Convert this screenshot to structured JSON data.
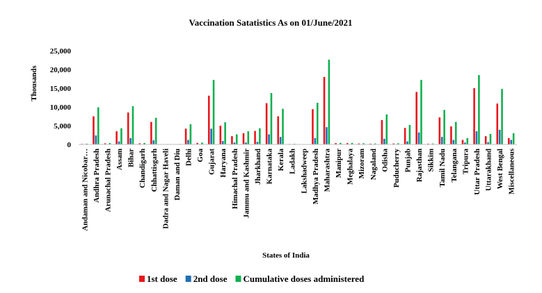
{
  "chart_data": {
    "type": "bar",
    "title": "Vaccination Satatistics As on 01/June/2021",
    "xlabel": "States of India",
    "ylabel": "Thousands",
    "ylim": [
      0,
      25000
    ],
    "yticks": [
      "0",
      "5,000",
      "10,000",
      "15,000",
      "20,000",
      "25,000"
    ],
    "grid": false,
    "legend_position": "bottom",
    "categories": [
      "Andaman and Nicobar…",
      "Andhra Pradesh",
      "Arunachal Pradesh",
      "Assam",
      "Bihar",
      "Chandigarh",
      "Chhattisgarh",
      "Dadra and Nagar Haveli",
      "Daman and Diu",
      "Delhi",
      "Goa",
      "Gujarat",
      "Haryana",
      "Himachal Pradesh",
      "Jammu and Kashmir",
      "Jharkhand",
      "Karnataka",
      "Kerala",
      "Ladakh",
      "Lakshadweep",
      "Madhya Pradesh",
      "Maharashtra",
      "Manipur",
      "Meghalaya",
      "Mizoram",
      "Nagaland",
      "Odisha",
      "Puducherry",
      "Punjab",
      "Rajasthan",
      "Sikkim",
      "Tamil Nadu",
      "Telangana",
      "Tripura",
      "Uttar Pradesh",
      "Uttarakhand",
      "West Bengal",
      "Miscellaneous"
    ],
    "series": [
      {
        "name": "1st dose",
        "color": "#e8171c",
        "values": [
          150,
          7500,
          300,
          3500,
          8500,
          300,
          6000,
          100,
          100,
          4200,
          400,
          13000,
          5000,
          2200,
          3000,
          3600,
          11000,
          7500,
          120,
          50,
          9400,
          18000,
          350,
          350,
          250,
          200,
          6500,
          250,
          4400,
          14000,
          200,
          7200,
          4800,
          1200,
          15000,
          2200,
          10900,
          1700
        ]
      },
      {
        "name": "2nd dose",
        "color": "#1f6fb4",
        "values": [
          40,
          2400,
          80,
          800,
          1700,
          80,
          1100,
          20,
          20,
          1200,
          100,
          4200,
          900,
          500,
          500,
          700,
          2700,
          2000,
          40,
          10,
          1700,
          4600,
          70,
          60,
          60,
          50,
          1500,
          60,
          800,
          3200,
          50,
          2000,
          1200,
          500,
          3500,
          600,
          3900,
          1200
        ]
      },
      {
        "name": "Cumulative doses administered",
        "color": "#11b04f",
        "values": [
          200,
          9900,
          380,
          4300,
          10200,
          380,
          7100,
          120,
          120,
          5400,
          500,
          17200,
          5900,
          2700,
          3500,
          4300,
          13700,
          9500,
          160,
          60,
          11100,
          22600,
          420,
          410,
          310,
          250,
          8000,
          310,
          5200,
          17200,
          250,
          9200,
          6000,
          1700,
          18500,
          2800,
          14800,
          3000
        ]
      }
    ]
  }
}
